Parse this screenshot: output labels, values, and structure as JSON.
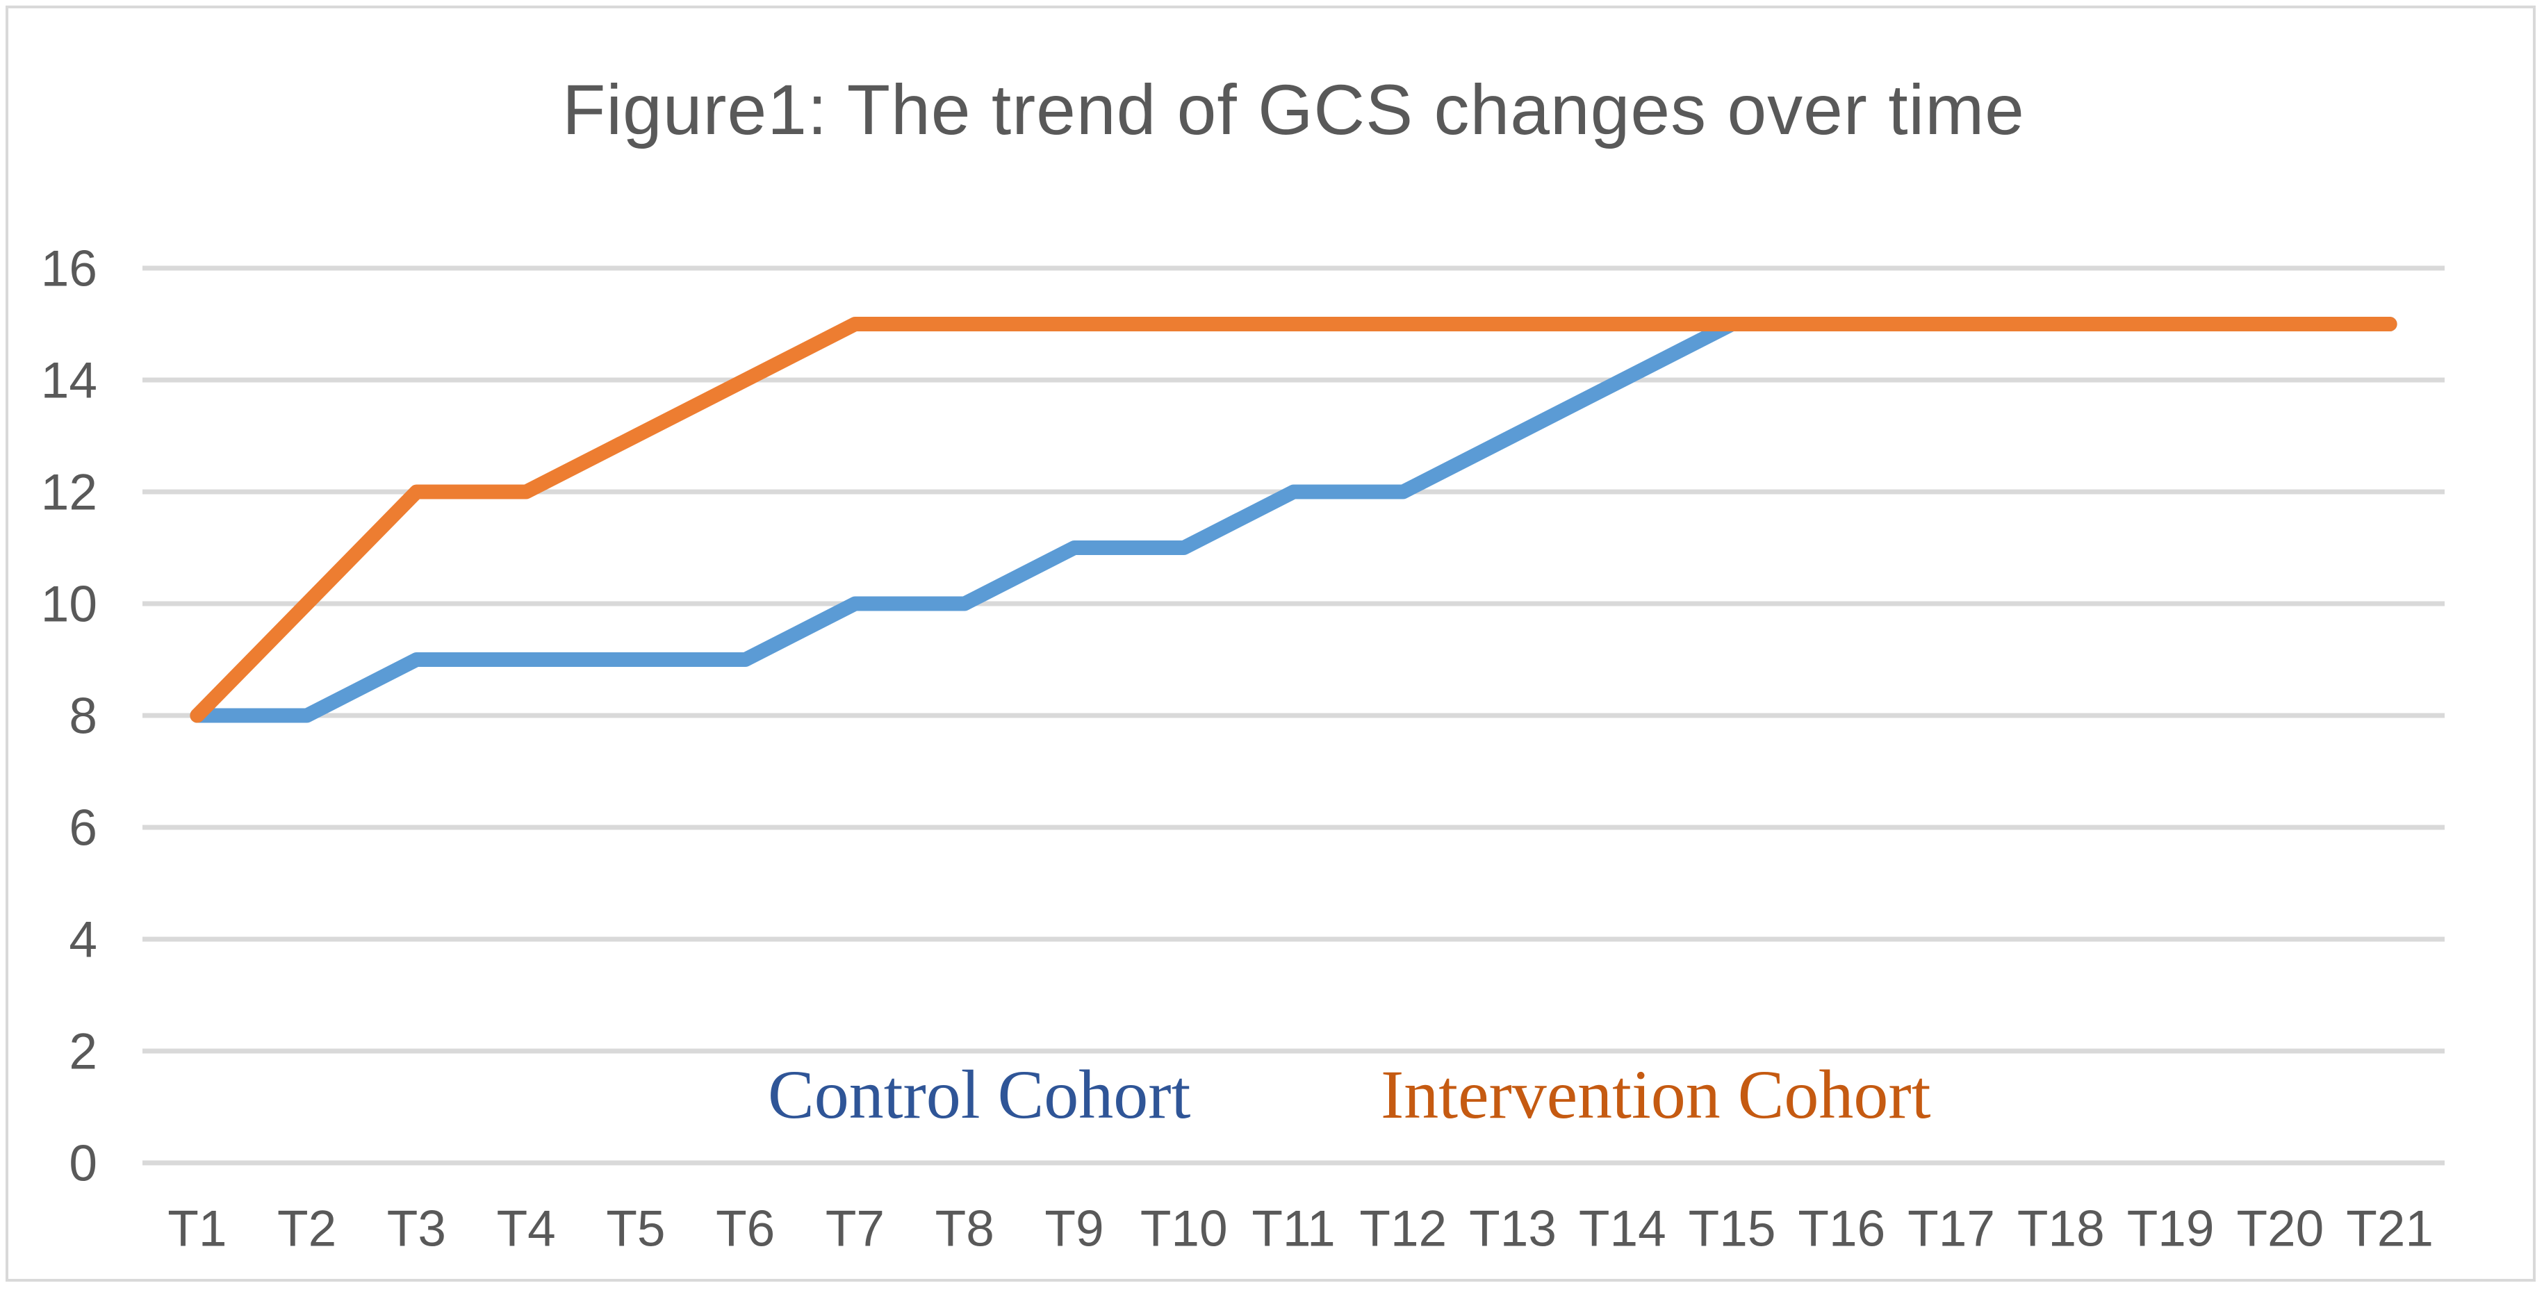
{
  "figure": {
    "title": "Figure1: The trend of GCS changes over time"
  },
  "legend": {
    "control_label": "Control Cohort",
    "intervention_label": "Intervention Cohort",
    "control_color": "#2F5597",
    "intervention_color": "#C55A11"
  },
  "colors": {
    "title_text": "#595959",
    "axis_text": "#595959",
    "gridline": "#D9D9D9",
    "border": "#D9D9D9",
    "control_line": "#5B9BD5",
    "intervention_line": "#ED7D31"
  },
  "chart_data": {
    "type": "line",
    "title": "Figure1: The trend of GCS changes over time",
    "categories": [
      "T1",
      "T2",
      "T3",
      "T4",
      "T5",
      "T6",
      "T7",
      "T8",
      "T9",
      "T10",
      "T11",
      "T12",
      "T13",
      "T14",
      "T15",
      "T16",
      "T17",
      "T18",
      "T19",
      "T20",
      "T21"
    ],
    "series": [
      {
        "name": "Control Cohort",
        "color": "#5B9BD5",
        "values": [
          8,
          8,
          9,
          9,
          9,
          9,
          10,
          10,
          11,
          11,
          12,
          12,
          13,
          14,
          15,
          15,
          15,
          15,
          15,
          15,
          15
        ]
      },
      {
        "name": "Intervention Cohort",
        "color": "#ED7D31",
        "values": [
          8,
          10,
          12,
          12,
          13,
          14,
          15,
          15,
          15,
          15,
          15,
          15,
          15,
          15,
          15,
          15,
          15,
          15,
          15,
          15,
          15
        ]
      }
    ],
    "xlabel": "",
    "ylabel": "",
    "ylim": [
      0,
      16
    ],
    "y_ticks": [
      0,
      2,
      4,
      6,
      8,
      10,
      12,
      14,
      16
    ],
    "grid": "horizontal",
    "legend_position": "inside-bottom"
  }
}
